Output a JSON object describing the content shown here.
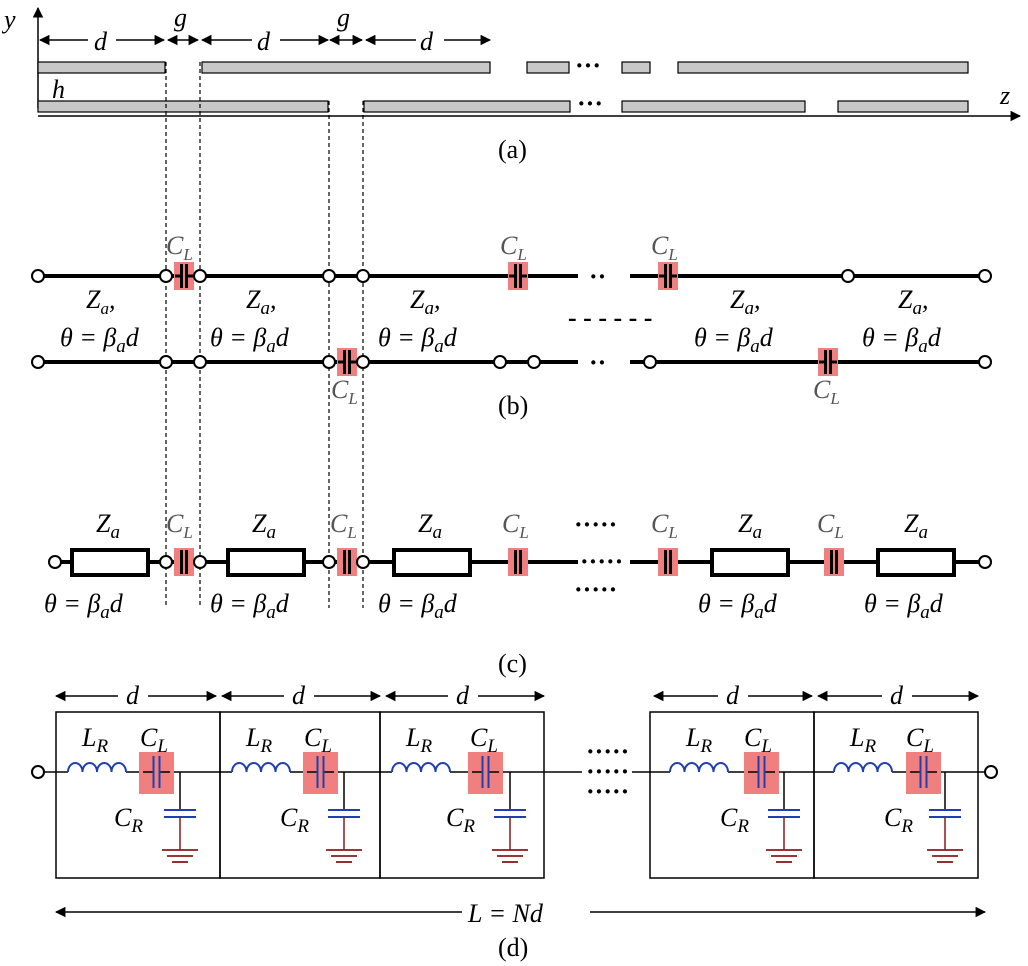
{
  "axes": {
    "y": "y",
    "z": "z"
  },
  "panel_a": {
    "caption": "(a)",
    "d": "d",
    "g": "g",
    "h": "h",
    "dots": "···"
  },
  "panel_b": {
    "caption": "(b)",
    "C": "C",
    "L_sub": "L",
    "Z": "Z",
    "a_sub": "a",
    "comma": ",",
    "theta": "θ = β",
    "theta_end": "d",
    "dots": "··",
    "dashes": "- - - - - -"
  },
  "panel_c": {
    "caption": "(c)",
    "dots": "·····"
  },
  "panel_d": {
    "caption": "(d)",
    "d": "d",
    "L": "L",
    "R_sub": "R",
    "C": "C",
    "length_label": "L = Nd",
    "dots": "·····"
  },
  "colors": {
    "capacitor_highlight": "#f08080",
    "strip_fill": "#c8c8c8",
    "cr_blue": "#1f3fb0",
    "ground_red": "#8b1a1a"
  }
}
